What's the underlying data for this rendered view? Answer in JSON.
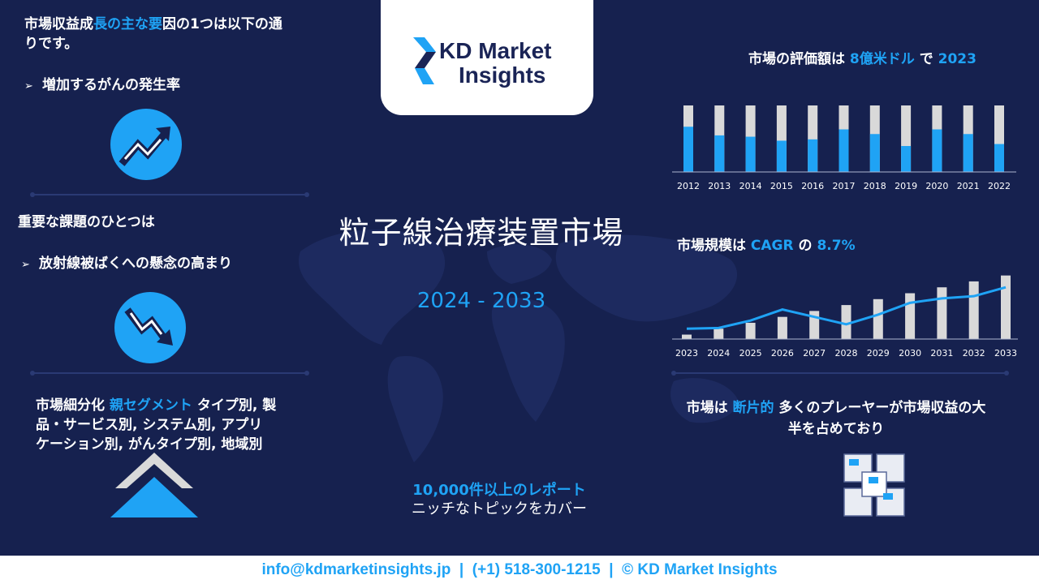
{
  "left": {
    "block1": {
      "line_a": "市場収益成",
      "line_b": "長の主な要",
      "line_c": "因の1つは以下の通",
      "line_d": "りです。",
      "bullet": "増加するがんの発生率"
    },
    "block2": {
      "heading": "重要な課題のひとつは",
      "bullet": "放射線被ばくへの懸念の高まり"
    },
    "block3": {
      "prefix": "市場細分化",
      "accent": "親セグメント",
      "line1_rest": "タイプ別, 製",
      "line2": "品・サービス別, システム別, アプリ",
      "line3": "ケーション別, がんタイプ別, 地域別"
    }
  },
  "logo": {
    "line1": "KD Market",
    "line2": "Insights"
  },
  "center": {
    "title": "粒子線治療装置市場",
    "years": "2024 - 2033",
    "reports_line1": "10,000件以上のレポート",
    "reports_line2": "ニッチなトピックをカバー"
  },
  "right": {
    "valuation": {
      "prefix": "市場の評価額は",
      "value": "8億米ドル",
      "mid": "で",
      "year": "2023"
    },
    "cagr": {
      "prefix": "市場規模は",
      "label": "CAGR",
      "mid": "の",
      "value": "8.7%"
    },
    "fragmented": {
      "prefix": "市場は",
      "accent": "断片的",
      "rest1": "多くのプレーヤーが市場収益の大",
      "rest2": "半を占めており"
    }
  },
  "chart_data": [
    {
      "type": "bar",
      "categories": [
        "2012",
        "2013",
        "2014",
        "2015",
        "2016",
        "2017",
        "2018",
        "2019",
        "2020",
        "2021",
        "2022"
      ],
      "series": [
        {
          "values": [
            0.68,
            0.55,
            0.53,
            0.47,
            0.49,
            0.64,
            0.57,
            0.39,
            0.64,
            0.57,
            0.42
          ]
        },
        {
          "values": [
            1,
            1,
            1,
            1,
            1,
            1,
            1,
            1,
            1,
            1,
            1
          ]
        }
      ],
      "colors": [
        "#1fa3f5",
        "#d9d9d9"
      ],
      "ylim": [
        0,
        1
      ],
      "grid": false
    },
    {
      "type": "bar",
      "categories": [
        "2023",
        "2024",
        "2025",
        "2026",
        "2027",
        "2028",
        "2029",
        "2030",
        "2031",
        "2032",
        "2033"
      ],
      "series": [
        {
          "values": [
            6,
            14,
            22,
            30,
            38,
            46,
            54,
            62,
            70,
            78,
            86
          ]
        },
        {
          "values": [
            14,
            15,
            25,
            40,
            30,
            20,
            33,
            49,
            55,
            58,
            70
          ]
        }
      ],
      "series_types": [
        "bar",
        "line"
      ],
      "colors": [
        "#d9d9d9",
        "#1fa3f5"
      ],
      "ylim": [
        0,
        90
      ],
      "grid": false
    }
  ],
  "footer": {
    "email": "info@kdmarketinsights.jp",
    "sep1": "|",
    "phone": "(+1) 518-300-1215",
    "sep2": "|",
    "copyright": "© KD Market Insights"
  },
  "icons": {
    "trend_up": "trend-up-icon",
    "trend_down": "trend-down-icon",
    "chevron_up": "chevron-up-icon",
    "cubes": "cubes-icon",
    "world_map": "world-map-icon"
  },
  "colors": {
    "background": "#16214f",
    "accent": "#1fa3f5",
    "bar_gray": "#d9d9d9"
  }
}
